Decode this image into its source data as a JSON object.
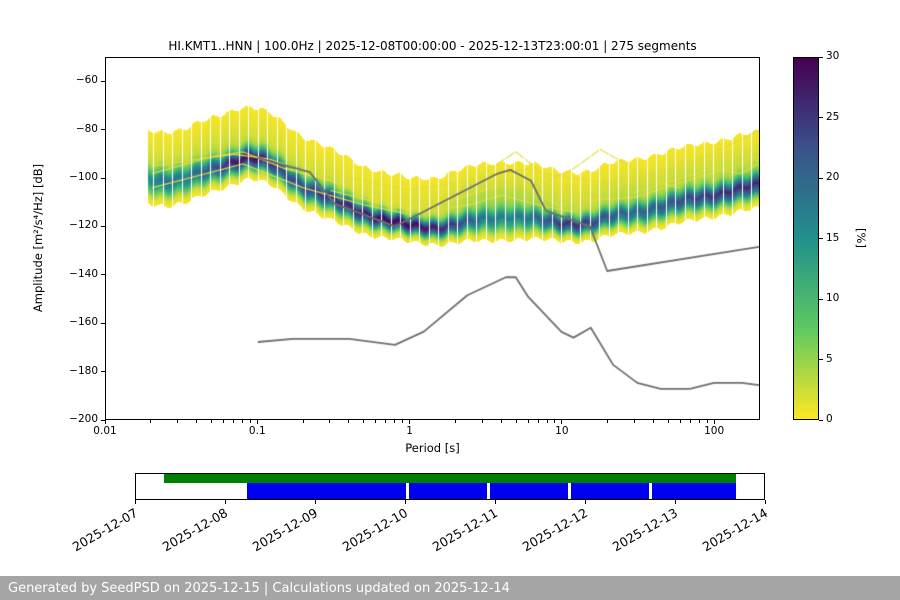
{
  "footer": {
    "text": "Generated by SeedPSD on 2025-12-15 | Calculations updated on 2025-12-14",
    "background": "#a5a5a5"
  },
  "chart_data": {
    "type": "heatmap",
    "title": "HI.KMT1..HNN | 100.0Hz | 2025-12-08T00:00:00 - 2025-12-13T23:00:01 | 275 segments",
    "xlabel": "Period [s]",
    "ylabel": "Amplitude [m²/s⁴/Hz] [dB]",
    "x_scale": "log",
    "xlim": [
      0.01,
      200
    ],
    "ylim": [
      -200,
      -50
    ],
    "grid": false,
    "x_tick_values": [
      0.01,
      0.1,
      1,
      10,
      100
    ],
    "x_tick_labels": [
      "0.01",
      "0.1",
      "1",
      "10",
      "100"
    ],
    "y_tick_values": [
      -200,
      -180,
      -160,
      -140,
      -120,
      -100,
      -80,
      -60
    ],
    "y_tick_labels": [
      "−200",
      "−180",
      "−160",
      "−140",
      "−120",
      "−100",
      "−80",
      "−60"
    ],
    "colorbar": {
      "label": "[%]",
      "min": 0,
      "max": 30,
      "tick_values": [
        0,
        5,
        10,
        15,
        20,
        25,
        30
      ],
      "colormap": "viridis reversed (0%=yellow, 30%=dark purple)"
    },
    "ppsd_mode": {
      "periods": [
        0.019,
        0.025,
        0.033,
        0.05,
        0.07,
        0.09,
        0.12,
        0.15,
        0.2,
        0.3,
        0.5,
        0.7,
        1.0,
        1.5,
        2.0,
        3.0,
        4.5,
        6.0,
        8.0,
        10,
        13,
        16,
        20,
        30,
        50,
        80,
        120,
        200
      ],
      "db": [
        -100.5,
        -101.5,
        -101,
        -96.5,
        -93,
        -91.5,
        -94,
        -98,
        -103.5,
        -109,
        -114.5,
        -117.5,
        -120,
        -120.5,
        -119.5,
        -118,
        -116.5,
        -117,
        -118.5,
        -119,
        -119,
        -118.5,
        -117,
        -114.5,
        -111.5,
        -108.5,
        -106,
        -103.5
      ],
      "sigma_db": [
        3.5,
        3.5,
        3.5,
        3.2,
        3,
        3,
        3,
        3,
        3,
        3,
        2.8,
        2.5,
        2.3,
        2.3,
        2.5,
        3,
        3.2,
        3,
        2.6,
        2.4,
        2.4,
        2.5,
        2.6,
        2.8,
        3,
        3,
        3,
        3.2
      ],
      "peak_percent": [
        14,
        18,
        16,
        20,
        26,
        28,
        24,
        22,
        22,
        24,
        26,
        28,
        28,
        26,
        22,
        16,
        14,
        16,
        20,
        24,
        24,
        22,
        20,
        18,
        20,
        22,
        24,
        24
      ],
      "tail_percent": [
        2,
        2,
        2,
        2.5,
        2.5,
        2,
        2,
        2,
        2,
        2,
        1.5,
        1.5,
        1.5,
        2,
        3,
        4,
        4,
        3.5,
        3,
        2.5,
        2.5,
        2.5,
        3,
        3,
        3,
        3,
        3,
        3
      ]
    },
    "noise_models": {
      "color": "#6e6e6e",
      "nhnm": [
        [
          0.1,
          -91.5
        ],
        [
          0.22,
          -97.4
        ],
        [
          0.32,
          -110.5
        ],
        [
          0.8,
          -120.0
        ],
        [
          3.8,
          -98.0
        ],
        [
          4.6,
          -96.5
        ],
        [
          6.3,
          -101.0
        ],
        [
          7.9,
          -113.5
        ],
        [
          15.4,
          -120.0
        ],
        [
          20.0,
          -138.5
        ],
        [
          200,
          -128.5
        ]
      ],
      "nlnm": [
        [
          0.1,
          -168.0
        ],
        [
          0.17,
          -166.7
        ],
        [
          0.4,
          -166.7
        ],
        [
          0.8,
          -169.2
        ],
        [
          1.24,
          -163.7
        ],
        [
          2.4,
          -148.6
        ],
        [
          4.3,
          -141.1
        ],
        [
          5.0,
          -141.1
        ],
        [
          6.0,
          -149.0
        ],
        [
          10.0,
          -163.8
        ],
        [
          12.0,
          -166.2
        ],
        [
          15.6,
          -162.1
        ],
        [
          21.9,
          -177.5
        ],
        [
          31.6,
          -185.0
        ],
        [
          45.0,
          -187.5
        ],
        [
          70.0,
          -187.5
        ],
        [
          101.0,
          -185.0
        ],
        [
          154.0,
          -185.0
        ],
        [
          200,
          -185.9
        ]
      ]
    },
    "outlier_traces": [
      [
        [
          0.15,
          -96
        ],
        [
          0.3,
          -98
        ],
        [
          0.6,
          -102
        ],
        [
          1,
          -105
        ],
        [
          2,
          -102
        ],
        [
          4,
          -98
        ],
        [
          6,
          -96
        ],
        [
          8,
          -98
        ],
        [
          12,
          -100
        ],
        [
          20,
          -102
        ],
        [
          40,
          -99
        ],
        [
          80,
          -92
        ],
        [
          150,
          -84
        ],
        [
          200,
          -80
        ]
      ],
      [
        [
          0.02,
          -98
        ],
        [
          0.05,
          -91
        ],
        [
          0.08,
          -89
        ],
        [
          0.15,
          -96
        ],
        [
          0.3,
          -101
        ],
        [
          0.8,
          -108
        ],
        [
          1.5,
          -111
        ],
        [
          3,
          -105
        ],
        [
          5,
          -100
        ],
        [
          8,
          -105
        ],
        [
          15,
          -109
        ],
        [
          30,
          -108
        ],
        [
          60,
          -102
        ],
        [
          120,
          -96
        ],
        [
          200,
          -91
        ]
      ],
      [
        [
          2.5,
          -102
        ],
        [
          4,
          -93
        ],
        [
          5,
          -89
        ],
        [
          6,
          -93
        ],
        [
          8,
          -100
        ],
        [
          10,
          -104
        ],
        [
          14,
          -107
        ]
      ],
      [
        [
          8,
          -101
        ],
        [
          12,
          -96
        ],
        [
          18,
          -88
        ],
        [
          25,
          -93
        ],
        [
          40,
          -101
        ],
        [
          60,
          -104
        ]
      ],
      [
        [
          10,
          -111
        ],
        [
          20,
          -105
        ],
        [
          40,
          -98
        ],
        [
          80,
          -92
        ],
        [
          150,
          -88
        ],
        [
          200,
          -89
        ]
      ],
      [
        [
          0.02,
          -104
        ],
        [
          0.04,
          -99
        ],
        [
          0.08,
          -94
        ],
        [
          0.2,
          -104
        ],
        [
          0.5,
          -111
        ],
        [
          1,
          -115
        ]
      ],
      [
        [
          1,
          -113
        ],
        [
          2,
          -109
        ],
        [
          3.5,
          -104
        ],
        [
          5,
          -102
        ],
        [
          7,
          -106
        ],
        [
          10,
          -112
        ]
      ],
      [
        [
          30,
          -106
        ],
        [
          60,
          -100
        ],
        [
          100,
          -96
        ],
        [
          150,
          -98
        ],
        [
          200,
          -94
        ]
      ],
      [
        [
          0.3,
          -105
        ],
        [
          0.7,
          -111
        ],
        [
          1.2,
          -114
        ],
        [
          2.5,
          -111
        ],
        [
          4,
          -107
        ],
        [
          7,
          -111
        ],
        [
          12,
          -114
        ]
      ],
      [
        [
          0.02,
          -95
        ],
        [
          0.04,
          -92
        ],
        [
          0.07,
          -90
        ],
        [
          0.12,
          -92
        ],
        [
          0.25,
          -99
        ],
        [
          0.5,
          -106
        ]
      ]
    ],
    "bin_stripe_step_decades": 0.0625
  },
  "timeline": {
    "dates": [
      "2025-12-07",
      "2025-12-08",
      "2025-12-09",
      "2025-12-10",
      "2025-12-11",
      "2025-12-12",
      "2025-12-13",
      "2025-12-14"
    ],
    "green_bar": {
      "color": "#008000",
      "start_frac": 0.044,
      "end_frac": 0.955
    },
    "blue_bar": {
      "color": "#0000ee",
      "start_frac": 0.176,
      "end_frac": 0.955,
      "gap_fracs": [
        0.433,
        0.562,
        0.69,
        0.819
      ]
    }
  }
}
